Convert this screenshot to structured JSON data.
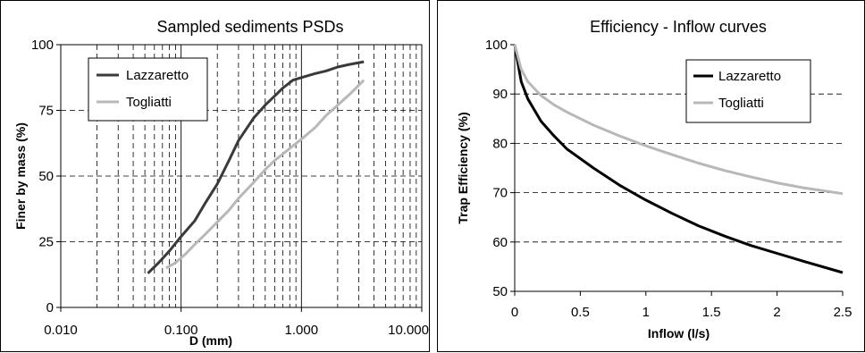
{
  "chart_data": [
    {
      "type": "line",
      "title": "Sampled sediments PSDs",
      "xlabel": "D (mm)",
      "ylabel": "Finer by mass (%)",
      "x_scale": "log",
      "xlim": [
        0.01,
        10
      ],
      "ylim": [
        0,
        100
      ],
      "x_ticks": [
        "0.010",
        "0.100",
        "1.000",
        "10.000"
      ],
      "y_ticks": [
        "0",
        "25",
        "50",
        "75",
        "100"
      ],
      "grid": "dashed, log minor verticals",
      "legend_position": "top-left",
      "colors": {
        "Lazzaretto": "#3a3a3a",
        "Togliatti": "#b8b8b8"
      },
      "series": [
        {
          "name": "Lazzaretto",
          "x": [
            0.053,
            0.065,
            0.08,
            0.1,
            0.13,
            0.16,
            0.2,
            0.25,
            0.3,
            0.4,
            0.5,
            0.6,
            0.7,
            0.85,
            1.0,
            1.3,
            1.6,
            2.0,
            2.5,
            3.3
          ],
          "y": [
            13,
            17,
            21.5,
            27,
            33,
            40,
            47,
            56,
            63.5,
            72,
            77,
            80.5,
            83.5,
            86.5,
            87.5,
            89,
            90,
            91.5,
            92.5,
            93.5
          ]
        },
        {
          "name": "Togliatti",
          "x": [
            0.075,
            0.09,
            0.11,
            0.13,
            0.16,
            0.2,
            0.25,
            0.3,
            0.4,
            0.5,
            0.6,
            0.8,
            1.0,
            1.3,
            1.6,
            2.0,
            2.5,
            3.3
          ],
          "y": [
            15,
            17,
            20.5,
            24,
            28,
            32.5,
            37,
            41.5,
            47.5,
            52.5,
            56,
            60.5,
            64,
            68.5,
            73,
            77,
            81,
            86.5
          ]
        }
      ]
    },
    {
      "type": "line",
      "title": "Efficiency - Inflow curves",
      "xlabel": "Inflow (l/s)",
      "ylabel": "Trap Efficiency (%)",
      "xlim": [
        0,
        2.5
      ],
      "ylim": [
        50,
        100
      ],
      "x_ticks": [
        "0",
        "0.5",
        "1",
        "1.5",
        "2",
        "2.5"
      ],
      "y_ticks": [
        "50",
        "60",
        "70",
        "80",
        "90",
        "100"
      ],
      "grid": "dashed horizontal",
      "legend_position": "top-right",
      "colors": {
        "Lazzaretto": "#000000",
        "Togliatti": "#b8b8b8"
      },
      "series": [
        {
          "name": "Lazzaretto",
          "x": [
            0,
            0.02,
            0.05,
            0.1,
            0.2,
            0.3,
            0.4,
            0.6,
            0.8,
            1.0,
            1.2,
            1.4,
            1.6,
            1.8,
            2.0,
            2.2,
            2.5
          ],
          "y": [
            100,
            97,
            92.5,
            89,
            84.5,
            81.5,
            78.8,
            75,
            71.5,
            68.5,
            65.8,
            63.3,
            61.2,
            59.3,
            57.7,
            56.1,
            53.8
          ]
        },
        {
          "name": "Togliatti",
          "x": [
            0,
            0.02,
            0.05,
            0.1,
            0.2,
            0.3,
            0.4,
            0.6,
            0.8,
            1.0,
            1.2,
            1.4,
            1.6,
            1.8,
            2.0,
            2.2,
            2.5
          ],
          "y": [
            100,
            98,
            95,
            92.5,
            89.7,
            87.8,
            86.3,
            83.7,
            81.5,
            79.5,
            77.7,
            76,
            74.5,
            73.2,
            72,
            71,
            69.8
          ]
        }
      ]
    }
  ]
}
